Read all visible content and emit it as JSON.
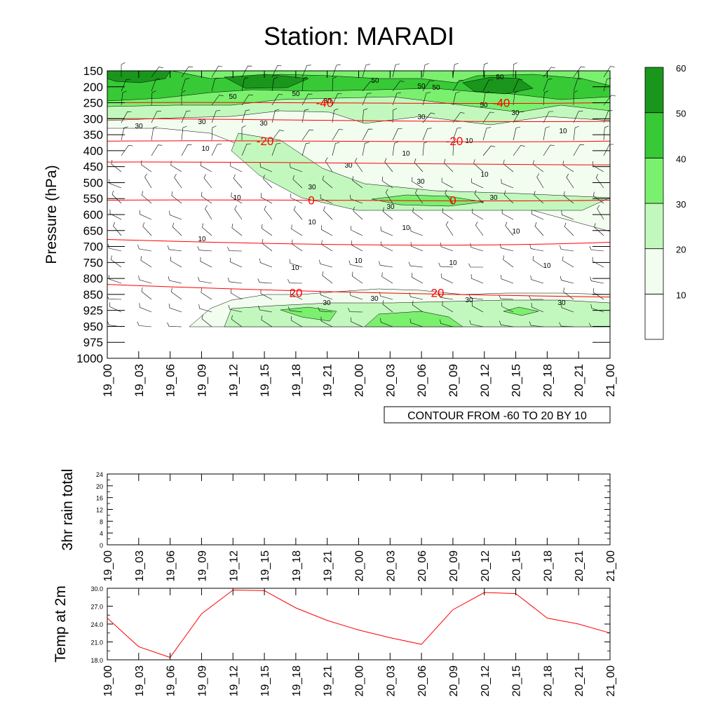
{
  "title": "Station: MARADI",
  "colors": {
    "contour_fill": [
      "#ffffff",
      "#f2fdf0",
      "#c2f8bd",
      "#7af06e",
      "#38c936",
      "#1a961c"
    ],
    "temp_line": "#ff0000",
    "temp_contour": "#ff0000",
    "axis": "#000000"
  },
  "chart_data": [
    {
      "id": "crosssection",
      "type": "heatmap",
      "subtype": "time-height cross section with wind barbs and temperature contours",
      "ylabel": "Pressure (hPa)",
      "xlabel": "",
      "x_ticks": [
        "19_00",
        "19_03",
        "19_06",
        "19_09",
        "19_12",
        "19_15",
        "19_18",
        "19_21",
        "20_00",
        "20_03",
        "20_06",
        "20_09",
        "20_12",
        "20_15",
        "20_18",
        "20_21",
        "21_00"
      ],
      "y_ticks": [
        "150",
        "200",
        "250",
        "300",
        "350",
        "400",
        "450",
        "500",
        "550",
        "600",
        "650",
        "700",
        "750",
        "800",
        "850",
        "925",
        "950",
        "975",
        "1000"
      ],
      "info_label": "CONTOUR FROM -60 TO 20 BY 10",
      "colorbar": {
        "levels": [
          10,
          20,
          30,
          40,
          50,
          60
        ],
        "labels": [
          "10",
          "20",
          "30",
          "40",
          "50",
          "60"
        ]
      },
      "wind_speed_contour_labels": [
        "10",
        "30",
        "50"
      ],
      "temperature_contours": [
        {
          "value": -40,
          "label": "-40",
          "level_hpa": 250
        },
        {
          "value": -20,
          "label": "-20",
          "level_hpa": 370
        },
        {
          "value": 0,
          "label": "0",
          "level_hpa": 555
        },
        {
          "value": 20,
          "label": "20",
          "level_hpa": 845
        }
      ]
    },
    {
      "id": "rain",
      "type": "line",
      "ylabel": "3hr rain total",
      "ylim": [
        0,
        24
      ],
      "y_ticks": [
        "0",
        "4",
        "8",
        "12",
        "16",
        "20",
        "24"
      ],
      "x_ticks": [
        "19_00",
        "19_03",
        "19_06",
        "19_09",
        "19_12",
        "19_15",
        "19_18",
        "19_21",
        "20_00",
        "20_03",
        "20_06",
        "20_09",
        "20_12",
        "20_15",
        "20_18",
        "20_21",
        "21_00"
      ],
      "values": [
        0,
        0,
        0,
        0,
        0,
        0,
        0,
        0,
        0,
        0,
        0,
        0,
        0,
        0,
        0,
        0,
        0
      ]
    },
    {
      "id": "temp",
      "type": "line",
      "ylabel": "Temp at 2m",
      "ylim": [
        18.0,
        30.0
      ],
      "y_ticks": [
        "18.0",
        "21.0",
        "24.0",
        "27.0",
        "30.0"
      ],
      "x_ticks": [
        "19_00",
        "19_03",
        "19_06",
        "19_09",
        "19_12",
        "19_15",
        "19_18",
        "19_21",
        "20_00",
        "20_03",
        "20_06",
        "20_09",
        "20_12",
        "20_15",
        "20_18",
        "20_21",
        "21_00"
      ],
      "values": [
        25.0,
        20.2,
        18.4,
        25.7,
        29.7,
        29.6,
        26.7,
        24.6,
        23.0,
        21.7,
        20.6,
        26.4,
        29.3,
        29.1,
        25.0,
        24.0,
        22.5
      ]
    }
  ]
}
